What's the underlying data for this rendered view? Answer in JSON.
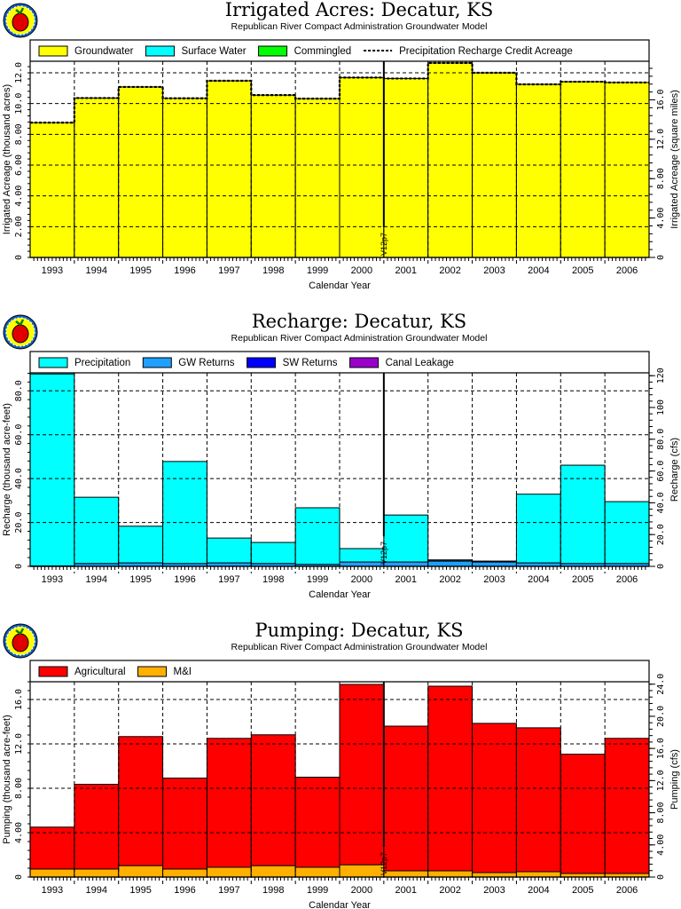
{
  "chart_data": [
    {
      "type": "bar",
      "stacked": true,
      "title": "Irrigated Acres: Decatur, KS",
      "subtitle": "Republican River Compact Administration Groundwater Model",
      "xlabel": "Calendar Year",
      "ylabel": "Irrigated Acreage (thousand acres)",
      "ylabel_right": "Irrigated Acreage (square miles)",
      "categories": [
        "1993",
        "1994",
        "1995",
        "1996",
        "1997",
        "1998",
        "1999",
        "2000",
        "2001",
        "2002",
        "2003",
        "2004",
        "2005",
        "2006"
      ],
      "series": [
        {
          "name": "Groundwater",
          "color": "#ffff00",
          "values": [
            8.76,
            10.36,
            11.08,
            10.34,
            11.48,
            10.55,
            10.32,
            11.69,
            11.63,
            12.64,
            12.0,
            11.25,
            11.42,
            11.37
          ]
        },
        {
          "name": "Surface Water",
          "color": "#00ffff",
          "values": [
            0,
            0,
            0,
            0,
            0,
            0,
            0,
            0,
            0,
            0,
            0,
            0,
            0,
            0
          ]
        },
        {
          "name": "Commingled",
          "color": "#00ff00",
          "values": [
            0,
            0,
            0,
            0,
            0,
            0,
            0,
            0,
            0,
            0,
            0,
            0,
            0,
            0
          ]
        }
      ],
      "line_series": [
        {
          "name": "Precipitation Recharge Credit Acreage",
          "style": "dashed",
          "values": [
            8.76,
            10.36,
            11.08,
            10.34,
            11.48,
            10.55,
            10.32,
            11.69,
            11.63,
            12.64,
            12.0,
            11.25,
            11.42,
            11.37
          ]
        }
      ],
      "ylim": [
        0,
        12.75
      ],
      "yticks": [
        {
          "v": 0,
          "label": "0"
        },
        {
          "v": 2,
          "label": "2.00"
        },
        {
          "v": 4,
          "label": "4.00"
        },
        {
          "v": 6,
          "label": "6.00"
        },
        {
          "v": 8,
          "label": "8.00"
        },
        {
          "v": 10,
          "label": "10.0"
        },
        {
          "v": 12,
          "label": "12.0"
        }
      ],
      "y2lim": [
        0,
        19.92
      ],
      "y2ticks": [
        {
          "v": 0,
          "label": "0"
        },
        {
          "v": 4,
          "label": "4.00"
        },
        {
          "v": 8,
          "label": "8.00"
        },
        {
          "v": 12,
          "label": "12.0"
        },
        {
          "v": 16,
          "label": "16.0"
        }
      ],
      "marker": {
        "label": "V12p7",
        "after_category": "2000"
      },
      "grid": true,
      "legend": "top"
    },
    {
      "type": "bar",
      "stacked": true,
      "title": "Recharge: Decatur, KS",
      "subtitle": "Republican River Compact Administration Groundwater Model",
      "xlabel": "Calendar Year",
      "ylabel": "Recharge (thousand acre-feet)",
      "ylabel_right": "Recharge (cfs)",
      "categories": [
        "1993",
        "1994",
        "1995",
        "1996",
        "1997",
        "1998",
        "1999",
        "2000",
        "2001",
        "2002",
        "2003",
        "2004",
        "2005",
        "2006"
      ],
      "series": [
        {
          "name": "GW Returns",
          "color": "#1ea0ff",
          "values": [
            0.2,
            1.3,
            1.6,
            1.3,
            1.6,
            1.3,
            0.9,
            2.0,
            2.0,
            2.4,
            2.0,
            1.6,
            1.3,
            1.3
          ]
        },
        {
          "name": "SW Returns",
          "color": "#0000ff",
          "values": [
            0,
            0,
            0,
            0,
            0,
            0,
            0,
            0,
            0,
            0.1,
            0.1,
            0,
            0,
            0
          ]
        },
        {
          "name": "Canal Leakage",
          "color": "#9900cc",
          "values": [
            0,
            0,
            0,
            0,
            0,
            0,
            0,
            0,
            0,
            0,
            0,
            0,
            0,
            0
          ]
        },
        {
          "name": "Precipitation",
          "color": "#00ffff",
          "values": [
            87.5,
            30.2,
            16.7,
            46.5,
            11.3,
            9.6,
            25.8,
            6.1,
            21.4,
            0.45,
            0.3,
            31.3,
            44.8,
            28.2
          ]
        }
      ],
      "legend_order": [
        "Precipitation",
        "GW Returns",
        "SW Returns",
        "Canal Leakage"
      ],
      "ylim": [
        0,
        88.2
      ],
      "yticks": [
        {
          "v": 0,
          "label": "0"
        },
        {
          "v": 20,
          "label": "20.0"
        },
        {
          "v": 40,
          "label": "40.0"
        },
        {
          "v": 60,
          "label": "60.0"
        },
        {
          "v": 80,
          "label": "80.0"
        }
      ],
      "y2lim": [
        0,
        121.8
      ],
      "y2ticks": [
        {
          "v": 0,
          "label": "0"
        },
        {
          "v": 20,
          "label": "20.0"
        },
        {
          "v": 40,
          "label": "40.0"
        },
        {
          "v": 60,
          "label": "60.0"
        },
        {
          "v": 80,
          "label": "80.0"
        },
        {
          "v": 100,
          "label": "100"
        },
        {
          "v": 120,
          "label": "120"
        }
      ],
      "marker": {
        "label": "V12p7",
        "after_category": "2000"
      },
      "grid": true,
      "legend": "top"
    },
    {
      "type": "bar",
      "stacked": true,
      "title": "Pumping: Decatur, KS",
      "subtitle": "Republican River Compact Administration Groundwater Model",
      "xlabel": "Calendar Year",
      "ylabel": "Pumping (thousand acre-feet)",
      "ylabel_right": "Pumping (cfs)",
      "categories": [
        "1993",
        "1994",
        "1995",
        "1996",
        "1997",
        "1998",
        "1999",
        "2000",
        "2001",
        "2002",
        "2003",
        "2004",
        "2005",
        "2006"
      ],
      "series": [
        {
          "name": "M&I",
          "color": "#ffb000",
          "values": [
            0.72,
            0.72,
            1.03,
            0.72,
            0.88,
            1.03,
            0.88,
            1.11,
            0.56,
            0.56,
            0.4,
            0.48,
            0.32,
            0.32
          ]
        },
        {
          "name": "Agricultural",
          "color": "#ff0000",
          "values": [
            3.78,
            7.64,
            11.63,
            8.2,
            11.62,
            11.79,
            8.12,
            16.25,
            13.04,
            16.64,
            13.45,
            12.97,
            10.75,
            12.18
          ]
        }
      ],
      "legend_order": [
        "Agricultural",
        "M&I"
      ],
      "ylim": [
        0,
        17.6
      ],
      "yticks": [
        {
          "v": 0,
          "label": "0"
        },
        {
          "v": 4,
          "label": "4.00"
        },
        {
          "v": 8,
          "label": "8.00"
        },
        {
          "v": 12,
          "label": "12.0"
        },
        {
          "v": 16,
          "label": "16.0"
        }
      ],
      "y2lim": [
        0,
        24.3
      ],
      "y2ticks": [
        {
          "v": 0,
          "label": "0"
        },
        {
          "v": 4,
          "label": "4.00"
        },
        {
          "v": 8,
          "label": "8.00"
        },
        {
          "v": 12,
          "label": "12.0"
        },
        {
          "v": 16,
          "label": "16.0"
        },
        {
          "v": 20,
          "label": "20.0"
        },
        {
          "v": 24,
          "label": "24.0"
        }
      ],
      "marker": {
        "label": "V12p7",
        "after_category": "2000"
      },
      "grid": true,
      "legend": "top"
    }
  ]
}
